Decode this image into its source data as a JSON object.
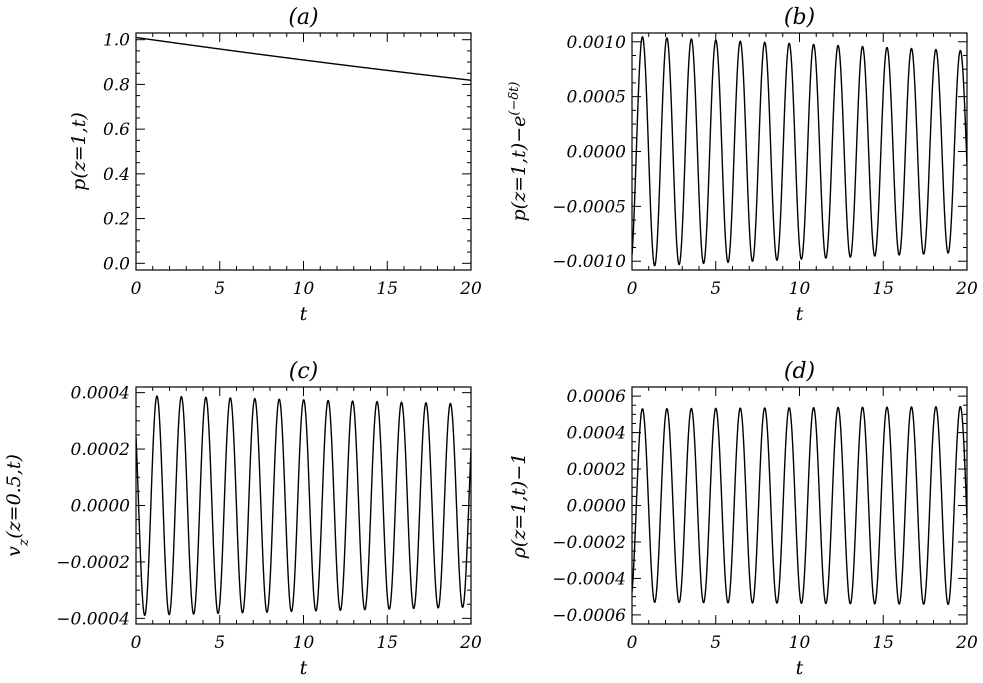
{
  "chart_data": [
    {
      "type": "line",
      "title": "(a)",
      "xlabel": "t",
      "ylabel": "p(z=1,t)",
      "xlim": [
        0,
        20
      ],
      "ylim": [
        -0.03,
        1.03
      ],
      "xticks": [
        "0",
        "5",
        "10",
        "15",
        "20"
      ],
      "yticks": [
        "0.0",
        "0.2",
        "0.4",
        "0.6",
        "0.8",
        "1.0"
      ],
      "series": [
        {
          "kind": "exp_decay",
          "x": [
            0,
            20
          ],
          "y0": 1.01,
          "decay_rate": 0.0105
        }
      ]
    },
    {
      "type": "line",
      "title": "(b)",
      "xlabel": "t",
      "ylabel": "p(z=1,t)−e",
      "ylabel_sup": "(−δt)",
      "xlim": [
        0,
        20
      ],
      "ylim": [
        -0.00108,
        0.00108
      ],
      "xticks": [
        "0",
        "5",
        "10",
        "15",
        "20"
      ],
      "yticks": [
        "−0.0010",
        "−0.0005",
        "0.0000",
        "0.0005",
        "0.0010"
      ],
      "series": [
        {
          "kind": "damped_cosine",
          "x": [
            0,
            20
          ],
          "amplitude": 0.00105,
          "decay_rate": 0.0067,
          "period": 1.46,
          "phase": 3.6
        }
      ]
    },
    {
      "type": "line",
      "title": "(c)",
      "xlabel": "t",
      "ylabel": "v",
      "ylabel_sub": "z",
      "ylabel_rest": "(z=0.5,t)",
      "xlim": [
        0,
        20
      ],
      "ylim": [
        -0.00042,
        0.00042
      ],
      "xticks": [
        "0",
        "5",
        "10",
        "15",
        "20"
      ],
      "yticks": [
        "−0.0004",
        "−0.0002",
        "0.0000",
        "0.0002",
        "0.0004"
      ],
      "series": [
        {
          "kind": "damped_cosine",
          "x": [
            0,
            20
          ],
          "amplitude": 0.00039,
          "decay_rate": 0.004,
          "period": 1.46,
          "phase": 0.9
        }
      ]
    },
    {
      "type": "line",
      "title": "(d)",
      "xlabel": "t",
      "ylabel": "ρ(z=1,t)−1",
      "xlim": [
        0,
        20
      ],
      "ylim": [
        -0.00065,
        0.00065
      ],
      "xticks": [
        "0",
        "5",
        "10",
        "15",
        "20"
      ],
      "yticks": [
        "−0.0006",
        "−0.0004",
        "−0.0002",
        "0.0000",
        "0.0002",
        "0.0004",
        "0.0006"
      ],
      "series": [
        {
          "kind": "damped_cosine",
          "x": [
            0,
            20
          ],
          "amplitude": 0.00053,
          "decay_rate": -0.0012,
          "period": 1.46,
          "phase": 3.6
        }
      ]
    }
  ]
}
